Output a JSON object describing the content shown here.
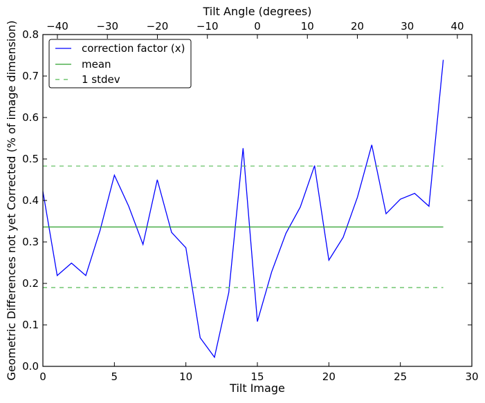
{
  "chart_data": {
    "type": "line",
    "xlabel": "Tilt Image",
    "ylabel": "Geometric Differences not yet Corrected (% of image dimension)",
    "top_xlabel": "Tilt Angle (degrees)",
    "xlim": [
      0,
      30
    ],
    "ylim": [
      0,
      0.8
    ],
    "top_xlim": [
      -42.9,
      42.9
    ],
    "x_ticks": [
      "0",
      "5",
      "10",
      "15",
      "20",
      "25",
      "30"
    ],
    "x_tick_values": [
      0,
      5,
      10,
      15,
      20,
      25,
      30
    ],
    "y_ticks": [
      "0.0",
      "0.1",
      "0.2",
      "0.3",
      "0.4",
      "0.5",
      "0.6",
      "0.7",
      "0.8"
    ],
    "y_tick_values": [
      0,
      0.1,
      0.2,
      0.3,
      0.4,
      0.5,
      0.6,
      0.7,
      0.8
    ],
    "top_ticks": [
      "−40",
      "−30",
      "−20",
      "−10",
      "0",
      "10",
      "20",
      "30",
      "40"
    ],
    "top_tick_values": [
      -40,
      -30,
      -20,
      -10,
      0,
      10,
      20,
      30,
      40
    ],
    "grid": false,
    "legend_position": "top-left",
    "series": [
      {
        "name": "correction factor (x)",
        "color": "#0000ff",
        "style": "solid",
        "x": [
          0,
          1,
          2,
          3,
          4,
          5,
          6,
          7,
          8,
          9,
          10,
          11,
          12,
          13,
          14,
          15,
          16,
          17,
          18,
          19,
          20,
          21,
          22,
          23,
          24,
          25,
          26,
          27,
          28
        ],
        "values": [
          0.422,
          0.219,
          0.249,
          0.219,
          0.328,
          0.461,
          0.386,
          0.294,
          0.45,
          0.323,
          0.286,
          0.069,
          0.022,
          0.178,
          0.526,
          0.108,
          0.228,
          0.321,
          0.384,
          0.484,
          0.256,
          0.311,
          0.408,
          0.534,
          0.368,
          0.403,
          0.417,
          0.386,
          0.739
        ]
      },
      {
        "name": "mean",
        "color": "#2ca02c",
        "style": "solid",
        "x": [
          0,
          28
        ],
        "values": [
          0.336,
          0.336
        ]
      },
      {
        "name": "1 stdev",
        "color": "#55bb55",
        "style": "dashed",
        "x": [
          0,
          28
        ],
        "values": [
          0.483,
          0.483
        ],
        "lower": [
          0.19,
          0.19
        ]
      }
    ]
  }
}
